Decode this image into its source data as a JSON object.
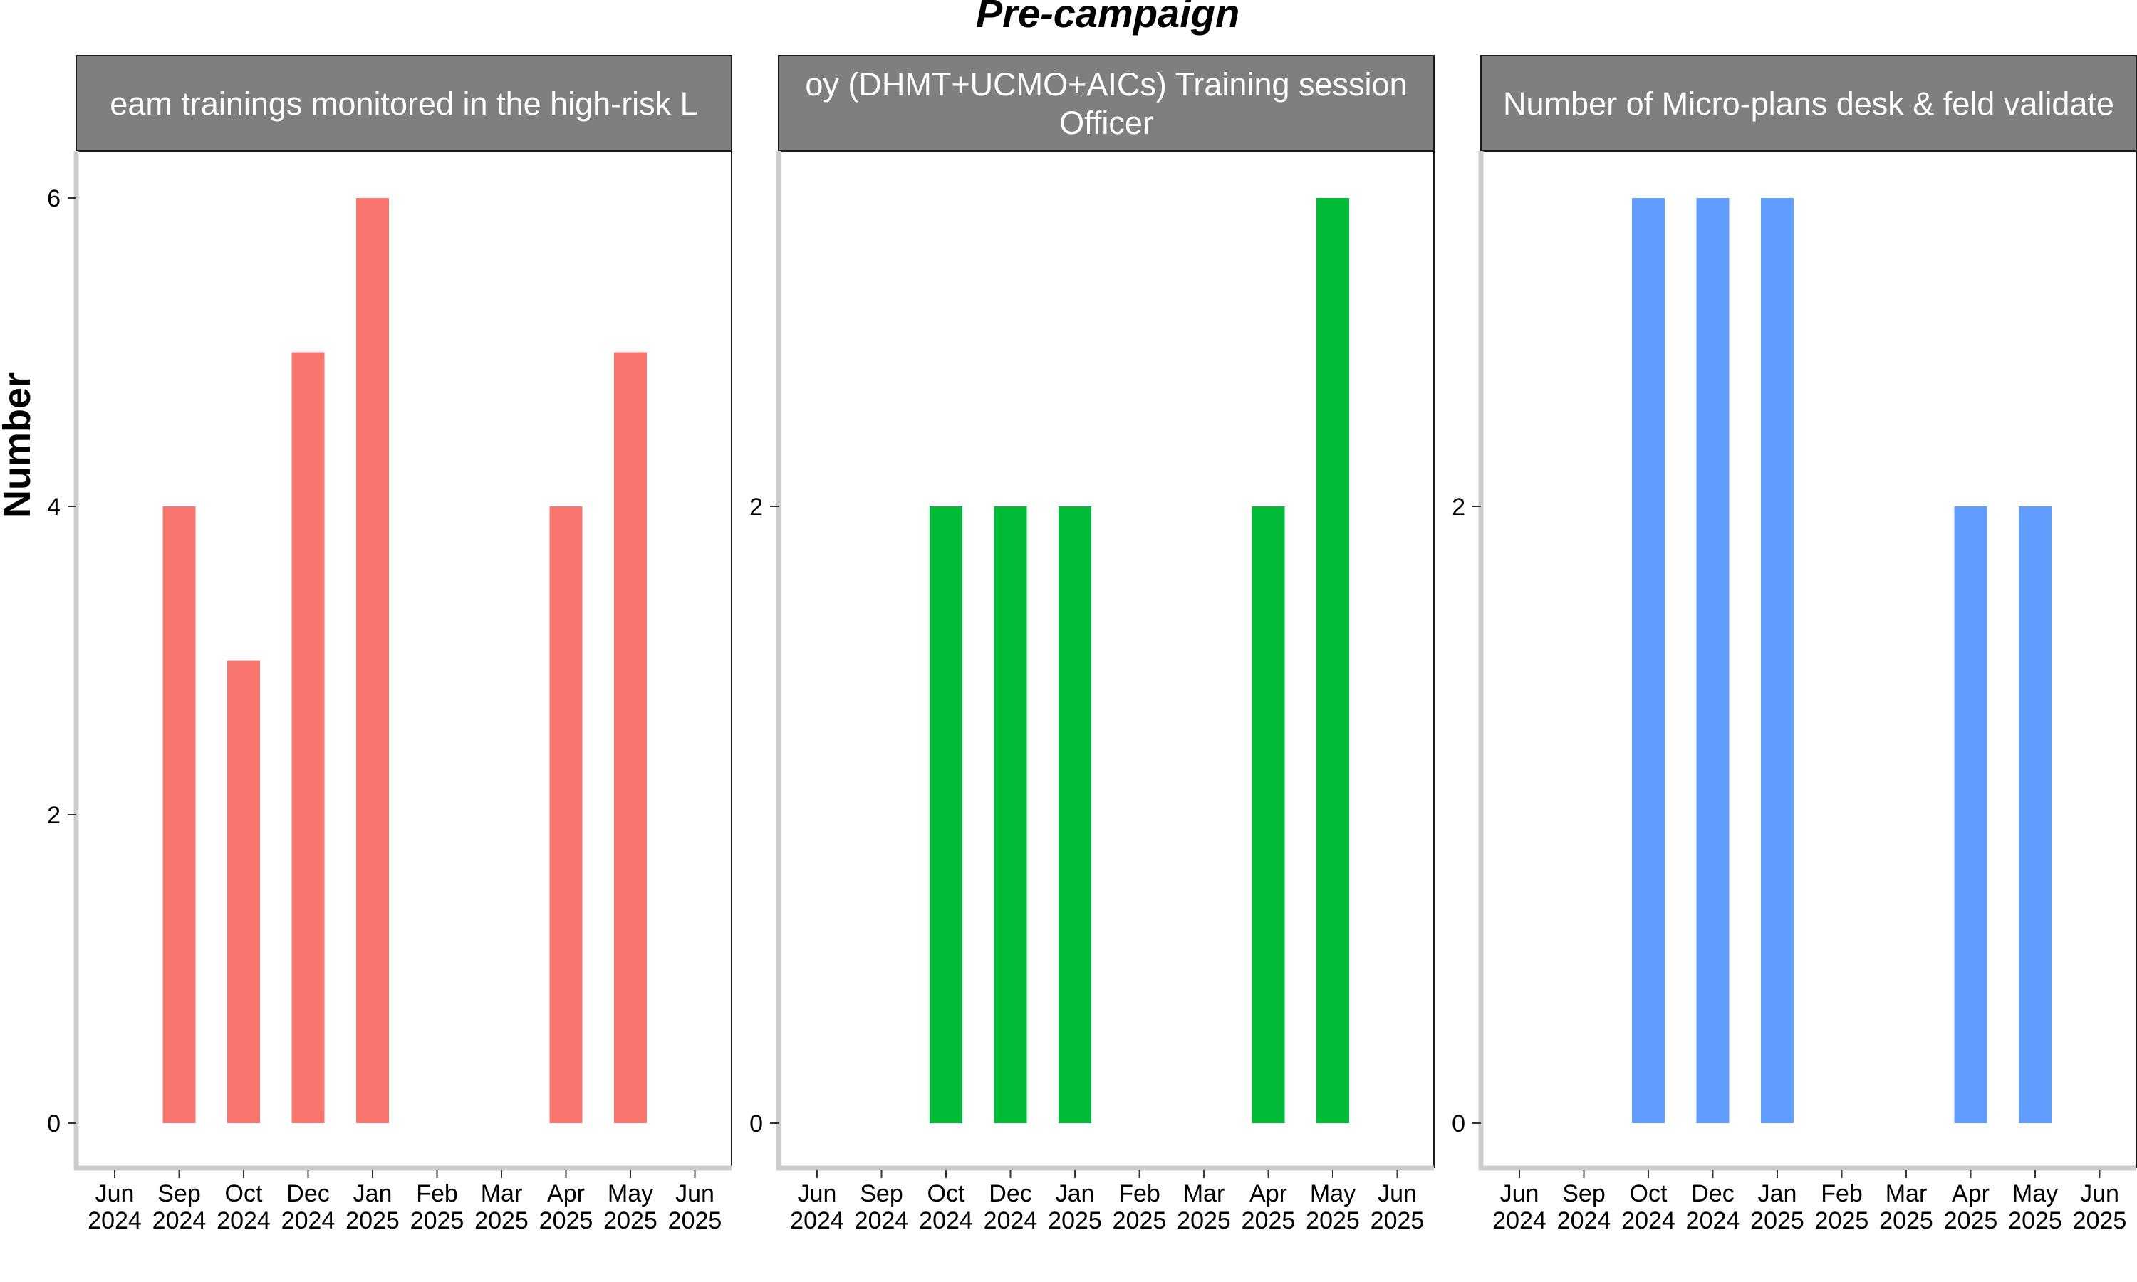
{
  "chart_data": {
    "type": "bar",
    "title": "Pre-campaign",
    "ylabel": "Number",
    "xlabel": "",
    "grid": false,
    "x_ticks": [
      "Jun\n2024",
      "Sep\n2024",
      "Oct\n2024",
      "Dec\n2024",
      "Jan\n2025",
      "Feb\n2025",
      "Mar\n2025",
      "Apr\n2025",
      "May\n2025",
      "Jun\n2025"
    ],
    "panels": [
      {
        "strip_lines": [
          "eam trainings monitored in the high-risk L"
        ],
        "color": "#F8766D",
        "ylim": [
          0,
          6.3
        ],
        "yticks": [
          0,
          2,
          4,
          6
        ],
        "bars": [
          {
            "x": "Sep\n2024",
            "value": 4
          },
          {
            "x": "Oct\n2024",
            "value": 3
          },
          {
            "x": "Dec\n2024",
            "value": 5
          },
          {
            "x": "Jan\n2025",
            "value": 6
          },
          {
            "x": "Apr\n2025",
            "value": 4
          },
          {
            "x": "May\n2025",
            "value": 5
          }
        ]
      },
      {
        "strip_lines": [
          "oy (DHMT+UCMO+AICs) Training session",
          "Officer"
        ],
        "color": "#00BA38",
        "ylim": [
          0,
          3.15
        ],
        "yticks": [
          0,
          2
        ],
        "bars": [
          {
            "x": "Oct\n2024",
            "value": 2
          },
          {
            "x": "Dec\n2024",
            "value": 2
          },
          {
            "x": "Jan\n2025",
            "value": 2
          },
          {
            "x": "Apr\n2025",
            "value": 2
          },
          {
            "x": "May\n2025",
            "value": 3
          }
        ]
      },
      {
        "strip_lines": [
          "Number of Micro-plans desk & feld validate"
        ],
        "color": "#619CFF",
        "ylim": [
          0,
          3.15
        ],
        "yticks": [
          0,
          2
        ],
        "bars": [
          {
            "x": "Oct\n2024",
            "value": 3
          },
          {
            "x": "Dec\n2024",
            "value": 3
          },
          {
            "x": "Jan\n2025",
            "value": 3
          },
          {
            "x": "Apr\n2025",
            "value": 2
          },
          {
            "x": "May\n2025",
            "value": 2
          }
        ]
      }
    ]
  }
}
